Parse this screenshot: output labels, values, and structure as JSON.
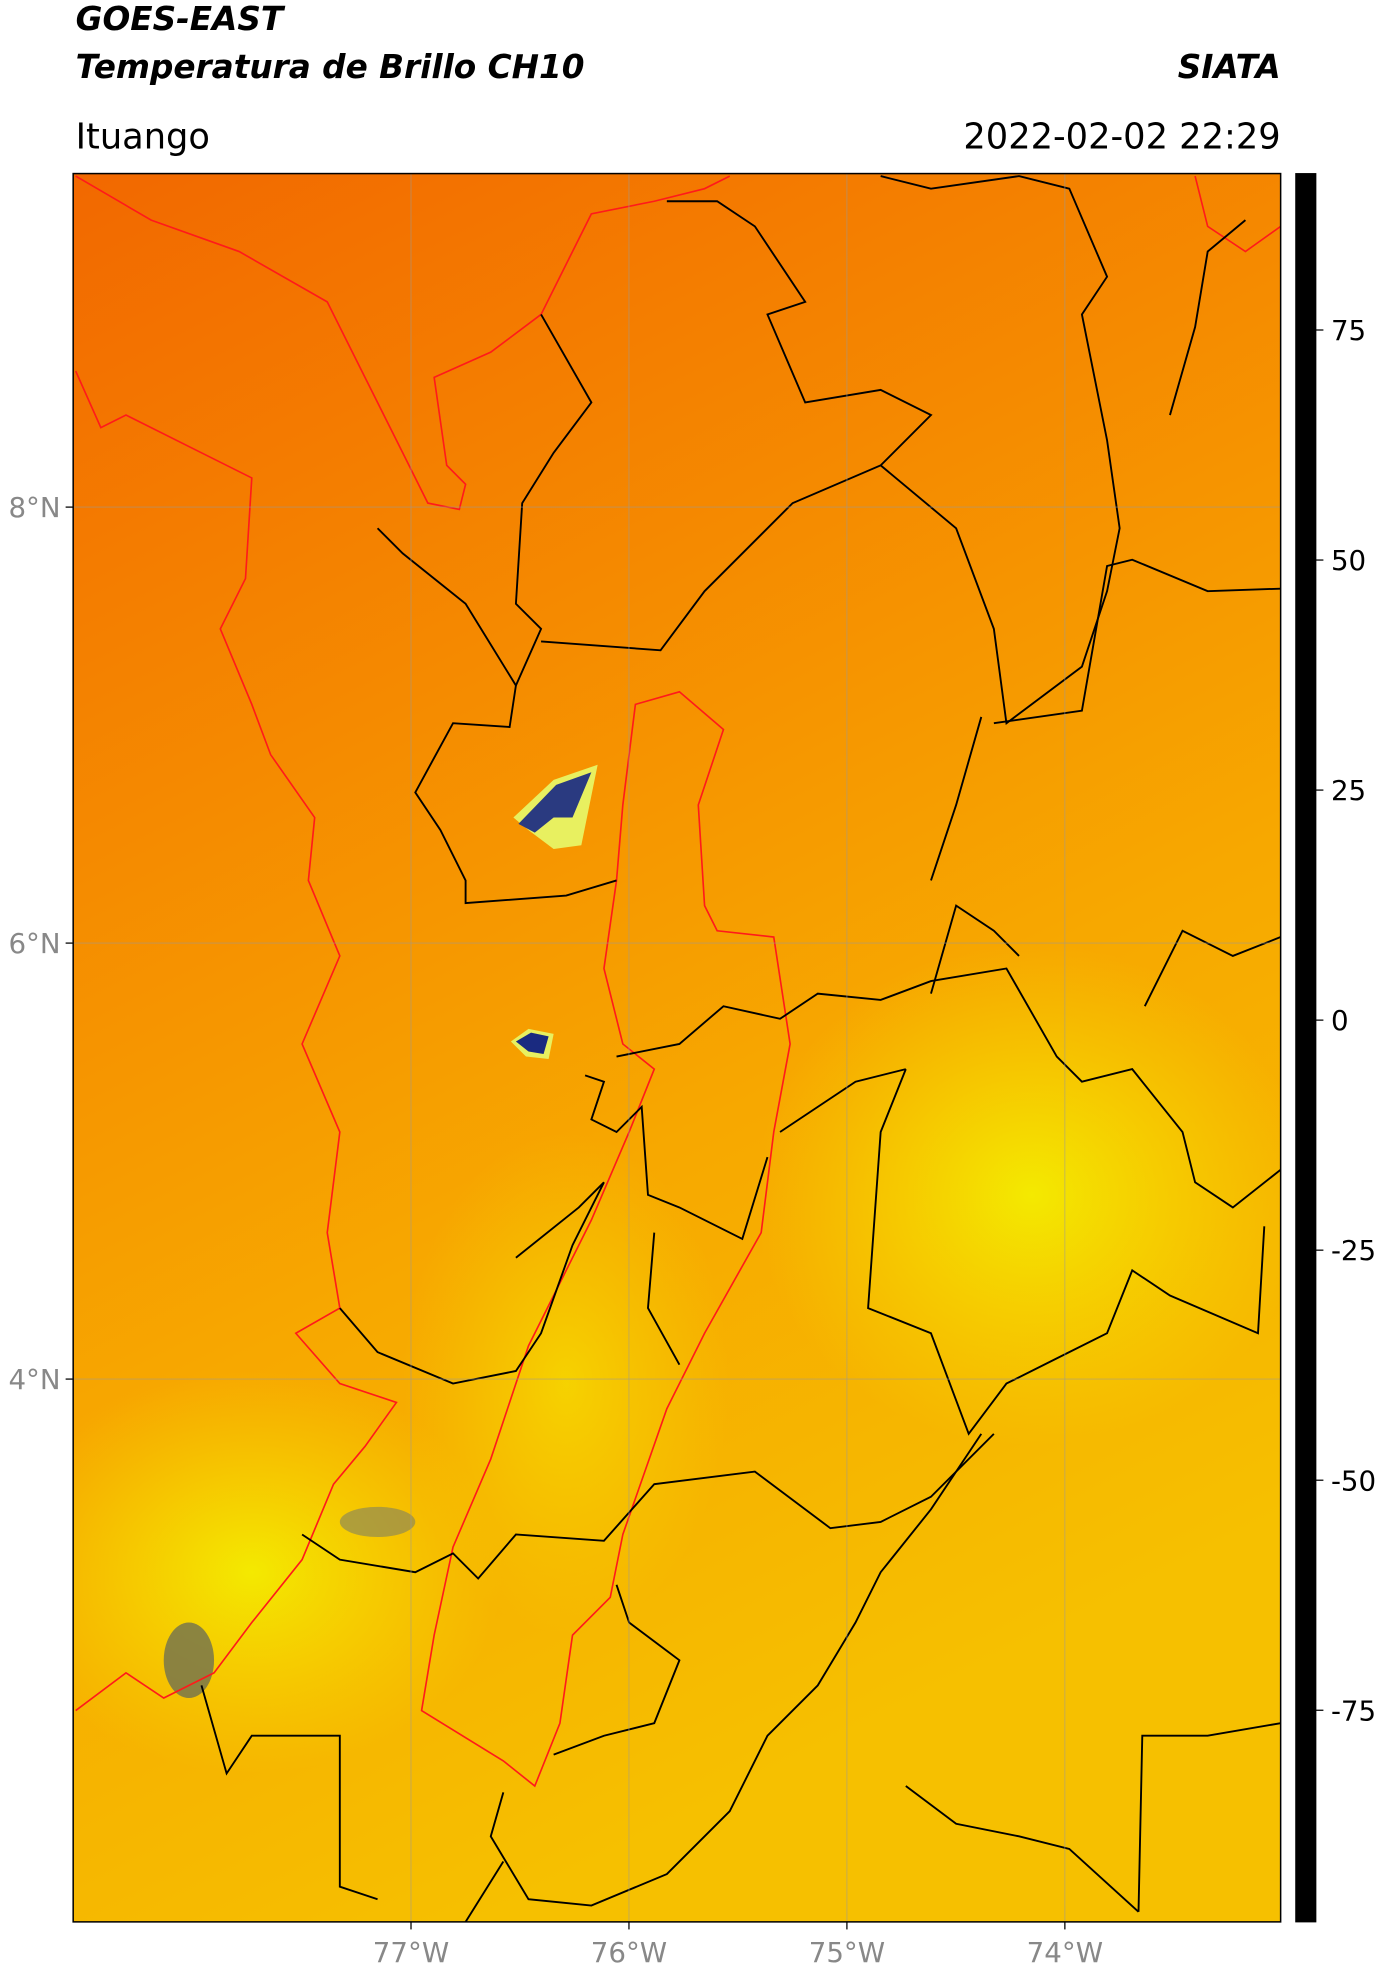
{
  "chart_data": {
    "type": "map",
    "title": "GOES-EAST",
    "subtitle": "Temperatura de Brillo CH10",
    "source": "SIATA",
    "location": "Ituango",
    "datetime": "2022-02-02 22:29",
    "xlim": [
      -78.55,
      -73.01
    ],
    "ylim": [
      1.51,
      9.53
    ],
    "xticks": [
      {
        "value": -77,
        "label": "77°W"
      },
      {
        "value": -76,
        "label": "76°W"
      },
      {
        "value": -75,
        "label": "75°W"
      },
      {
        "value": -74,
        "label": "74°W"
      }
    ],
    "yticks": [
      {
        "value": 8,
        "label": "8°N"
      },
      {
        "value": 6,
        "label": "6°N"
      },
      {
        "value": 4,
        "label": "4°N"
      }
    ],
    "grid": true,
    "colorbar": {
      "clim": [
        -98,
        92
      ],
      "ticks": [
        75,
        50,
        25,
        0,
        -25,
        -50,
        -75
      ],
      "stops": [
        {
          "value": 92,
          "color": "#000000"
        },
        {
          "value": 9,
          "color": "#000000"
        },
        {
          "value": 8,
          "color": "#ff0000"
        },
        {
          "value": 0,
          "color": "#ff8c00"
        },
        {
          "value": -15,
          "color": "#ffff00"
        },
        {
          "value": -22,
          "color": "#555555"
        },
        {
          "value": -28,
          "color": "#0a1a80"
        },
        {
          "value": -38,
          "color": "#8a90c8"
        },
        {
          "value": -47,
          "color": "#ffffff"
        },
        {
          "value": -65,
          "color": "#2e7d32"
        },
        {
          "value": -85,
          "color": "#1abc9c"
        },
        {
          "value": -93,
          "color": "#00e5e5"
        },
        {
          "value": -94,
          "color": "#ffffff"
        },
        {
          "value": -98,
          "color": "#ffffff"
        }
      ]
    }
  }
}
